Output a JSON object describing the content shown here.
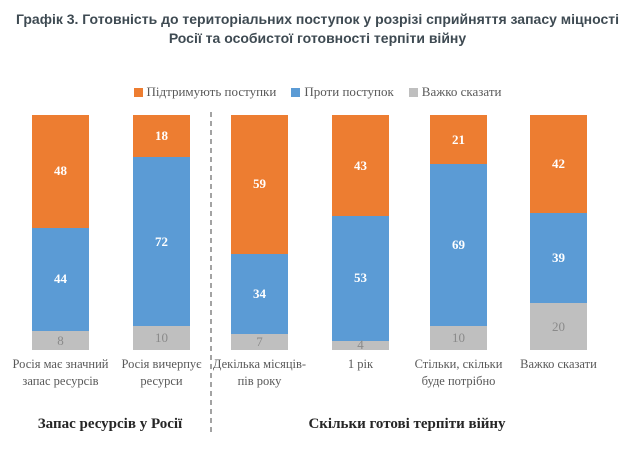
{
  "title": {
    "line1": "Графік 3. Готовність до територіальних поступок у розрізі сприйняття запасу міцності",
    "line2": "Росії та особистої готовності терпіти війну"
  },
  "legend": [
    {
      "label": "Підтримують поступки",
      "color": "#ED7D31"
    },
    {
      "label": "Проти поступок",
      "color": "#5B9BD5"
    },
    {
      "label": "Важко сказати",
      "color": "#BFBFBF"
    }
  ],
  "colors": {
    "support_orange": "#ED7D31",
    "against_blue": "#5B9BD5",
    "hard_to_say_gray": "#BFBFBF",
    "title_text": "#3e4a52",
    "axis_text": "#595959",
    "gray_value_text": "#8a8a8a",
    "divider_gray": "#a3a3a3"
  },
  "chart_data": {
    "type": "bar",
    "stacked": true,
    "orientation": "vertical",
    "title": "Графік 3. Готовність до територіальних поступок у розрізі сприйняття запасу міцності Росії та особистої готовності терпіти війну",
    "xlabel": "",
    "ylabel": "",
    "ylim": [
      0,
      100
    ],
    "grid": false,
    "legend_position": "top",
    "categories": [
      "Росія має значний запас ресурсів",
      "Росія вичерпує ресурси",
      "Декілька місяців-пів року",
      "1 рік",
      "Стільки, скільки буде потрібно",
      "Важко сказати"
    ],
    "series": [
      {
        "name": "Підтримують поступки",
        "color": "#ED7D31",
        "value_label_color": "#ffffff",
        "values": [
          48,
          18,
          59,
          43,
          21,
          42
        ]
      },
      {
        "name": "Проти поступок",
        "color": "#5B9BD5",
        "value_label_color": "#ffffff",
        "values": [
          44,
          72,
          34,
          53,
          69,
          39
        ]
      },
      {
        "name": "Важко сказати",
        "color": "#BFBFBF",
        "value_label_color": "#8a8a8a",
        "values": [
          8,
          10,
          7,
          4,
          10,
          20
        ]
      }
    ],
    "groups": [
      {
        "label": "Запас ресурсів у Росії",
        "category_indexes": [
          0,
          1
        ]
      },
      {
        "label": "Скільки готові терпіти війну",
        "category_indexes": [
          2,
          3,
          4,
          5
        ]
      }
    ]
  }
}
